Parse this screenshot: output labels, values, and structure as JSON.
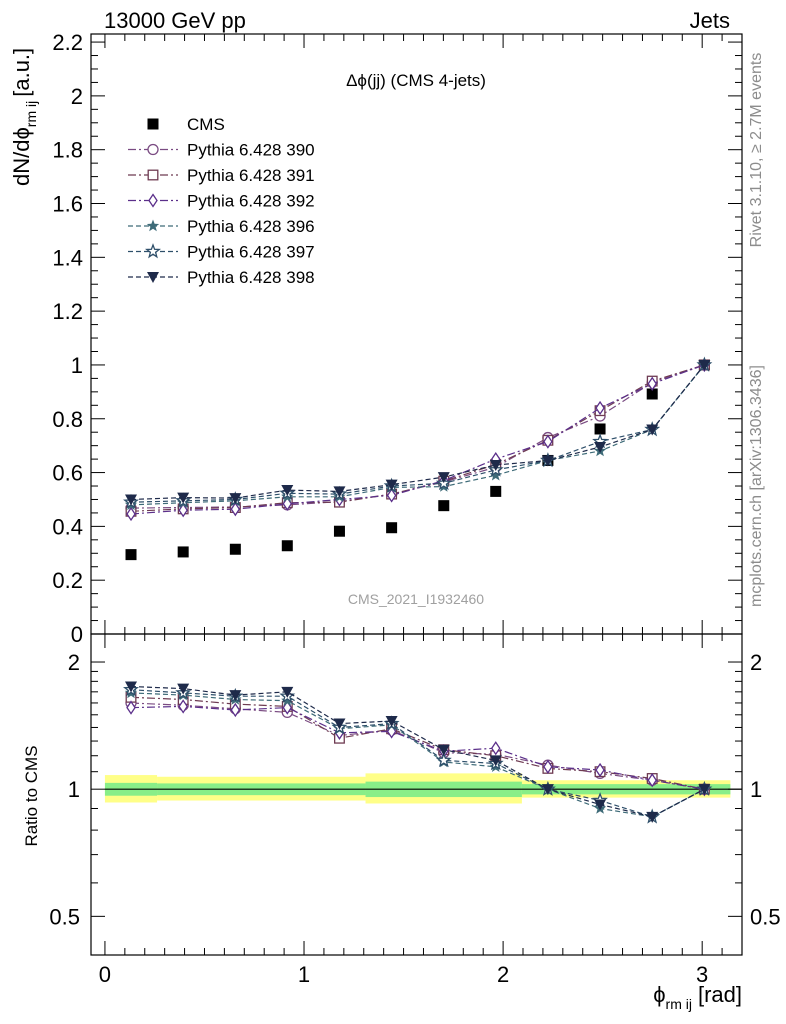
{
  "header": {
    "left": "13000 GeV pp",
    "right": "Jets"
  },
  "side_labels": {
    "rivet": "Rivet 3.1.10, ≥ 2.7M events",
    "mcplots": "mcplots.cern.ch [arXiv:1306.3436]"
  },
  "chart_data": [
    {
      "type": "scatter",
      "panel": "main",
      "title": "Δϕ(jj) (CMS 4-jets)",
      "watermark": "CMS_2021_I1932460",
      "ylabel": "dN/dϕ_rm ij [a.u.]",
      "ylabel_main": "dN/dϕ",
      "ylabel_sub": "rm ij",
      "ylabel_unit": "[a.u.]",
      "xlim": [
        -0.07,
        3.2
      ],
      "ylim": [
        0,
        2.23
      ],
      "y_ticks": [
        0,
        0.2,
        0.4,
        0.6,
        0.8,
        1,
        1.2,
        1.4,
        1.6,
        1.8,
        2,
        2.2
      ],
      "y_tick_labels": [
        "0",
        "0.2",
        "0.4",
        "0.6",
        "0.8",
        "1",
        "1.2",
        "1.4",
        "1.6",
        "1.8",
        "2",
        "2.2"
      ],
      "legend_position": "top-left",
      "x": [
        0.131,
        0.393,
        0.655,
        0.916,
        1.178,
        1.44,
        1.702,
        1.963,
        2.225,
        2.487,
        2.749,
        3.011
      ],
      "series": [
        {
          "name": "CMS",
          "marker": "filled-square",
          "color": "#000000",
          "line": "none",
          "values": [
            0.295,
            0.305,
            0.315,
            0.328,
            0.382,
            0.395,
            0.477,
            0.53,
            0.645,
            0.762,
            0.892,
            1.0
          ]
        },
        {
          "name": "Pythia 6.428 390",
          "marker": "open-circle",
          "color": "#7a4b82",
          "line": "dashdot",
          "values": [
            0.468,
            0.47,
            0.472,
            0.48,
            0.492,
            0.52,
            0.565,
            0.62,
            0.73,
            0.81,
            0.935,
            1.0
          ]
        },
        {
          "name": "Pythia 6.428 391",
          "marker": "open-square",
          "color": "#6e3b52",
          "line": "dashdot",
          "values": [
            0.456,
            0.465,
            0.47,
            0.488,
            0.49,
            0.52,
            0.568,
            0.63,
            0.72,
            0.83,
            0.94,
            1.0
          ]
        },
        {
          "name": "Pythia 6.428 392",
          "marker": "open-diamond",
          "color": "#5b2f8a",
          "line": "dashdot",
          "values": [
            0.446,
            0.46,
            0.464,
            0.484,
            0.5,
            0.515,
            0.57,
            0.65,
            0.715,
            0.84,
            0.93,
            1.0
          ]
        },
        {
          "name": "Pythia 6.428 396",
          "marker": "filled-star",
          "color": "#3e6b78",
          "line": "dashed",
          "values": [
            0.48,
            0.488,
            0.495,
            0.51,
            0.51,
            0.545,
            0.548,
            0.59,
            0.645,
            0.68,
            0.76,
            1.0
          ]
        },
        {
          "name": "Pythia 6.428 397",
          "marker": "open-star",
          "color": "#2e4f6a",
          "line": "dashed",
          "values": [
            0.49,
            0.495,
            0.5,
            0.523,
            0.52,
            0.55,
            0.56,
            0.61,
            0.645,
            0.715,
            0.76,
            1.0
          ]
        },
        {
          "name": "Pythia 6.428 398",
          "marker": "filled-triangle-down",
          "color": "#1e2a4a",
          "line": "dashed",
          "values": [
            0.5,
            0.507,
            0.505,
            0.535,
            0.53,
            0.555,
            0.583,
            0.628,
            0.645,
            0.695,
            0.76,
            1.0
          ]
        }
      ]
    },
    {
      "type": "scatter",
      "panel": "ratio",
      "ylabel": "Ratio to CMS",
      "xlabel": "ϕ_rm ij [rad]",
      "xlabel_main": "ϕ",
      "xlabel_sub": "rm ij",
      "xlabel_unit": "[rad]",
      "xlim": [
        -0.07,
        3.2
      ],
      "ylim": [
        0.405,
        2.33
      ],
      "y_scale": "log",
      "x_ticks": [
        0,
        1,
        2,
        3
      ],
      "x_tick_labels": [
        "0",
        "1",
        "2",
        "3"
      ],
      "y_ticks": [
        0.5,
        1,
        2
      ],
      "y_tick_labels": [
        "0.5",
        "1",
        "2"
      ],
      "x": [
        0.131,
        0.393,
        0.655,
        0.916,
        1.178,
        1.44,
        1.702,
        1.963,
        2.225,
        2.487,
        2.749,
        3.011
      ],
      "bands": [
        {
          "name": "outer",
          "color": "#ffff88",
          "segments": [
            [
              0,
              0.2618,
              0.93,
              1.08
            ],
            [
              0.2618,
              1.309,
              0.94,
              1.07
            ],
            [
              1.309,
              2.0944,
              0.925,
              1.09
            ],
            [
              2.0944,
              3.1416,
              0.955,
              1.05
            ]
          ]
        },
        {
          "name": "inner",
          "color": "#88ee88",
          "segments": [
            [
              0,
              0.2618,
              0.965,
              1.035
            ],
            [
              0.2618,
              1.309,
              0.968,
              1.032
            ],
            [
              1.309,
              2.0944,
              0.958,
              1.042
            ],
            [
              2.0944,
              3.1416,
              0.972,
              1.028
            ]
          ]
        }
      ],
      "series": [
        {
          "name": "Pythia 6.428 390",
          "values": [
            1.6,
            1.58,
            1.55,
            1.52,
            1.34,
            1.38,
            1.22,
            1.21,
            1.14,
            1.09,
            1.05,
            1.0
          ]
        },
        {
          "name": "Pythia 6.428 391",
          "values": [
            1.65,
            1.63,
            1.59,
            1.57,
            1.32,
            1.39,
            1.24,
            1.2,
            1.12,
            1.1,
            1.06,
            1.0
          ]
        },
        {
          "name": "Pythia 6.428 392",
          "values": [
            1.56,
            1.57,
            1.54,
            1.56,
            1.36,
            1.37,
            1.23,
            1.25,
            1.13,
            1.11,
            1.05,
            1.0
          ]
        },
        {
          "name": "Pythia 6.428 396",
          "values": [
            1.69,
            1.67,
            1.63,
            1.62,
            1.39,
            1.42,
            1.16,
            1.13,
            1.0,
            0.9,
            0.86,
            1.0
          ]
        },
        {
          "name": "Pythia 6.428 397",
          "values": [
            1.72,
            1.69,
            1.66,
            1.66,
            1.4,
            1.43,
            1.17,
            1.15,
            1.0,
            0.94,
            0.86,
            1.0
          ]
        },
        {
          "name": "Pythia 6.428 398",
          "values": [
            1.75,
            1.73,
            1.67,
            1.7,
            1.43,
            1.45,
            1.24,
            1.17,
            1.0,
            0.92,
            0.86,
            1.0
          ]
        }
      ]
    }
  ]
}
